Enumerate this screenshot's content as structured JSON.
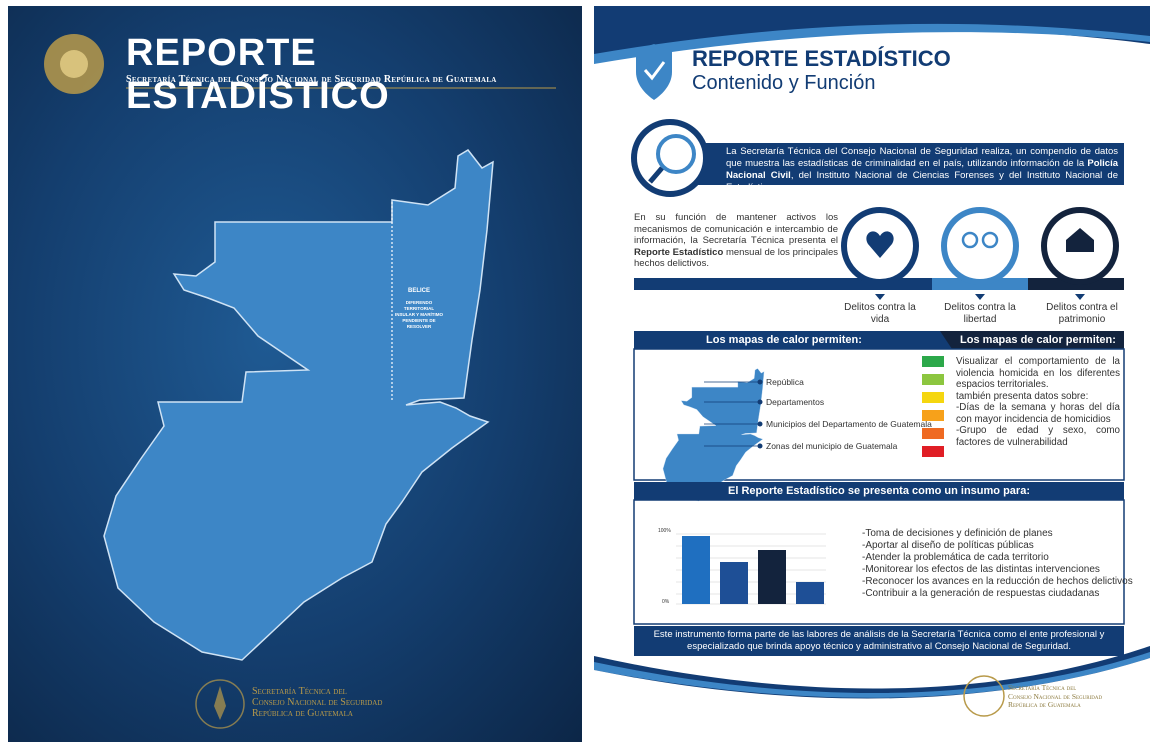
{
  "left_page": {
    "title": "REPORTE ESTADÍSTICO",
    "subtitle": "Secretaría Técnica del Consejo Nacional de Seguridad República de Guatemala",
    "map_label": "BELICE",
    "map_note": "DIFERENDO TERRITORIAL INSULAR Y MARÍTIMO PENDIENTE DE RESOLVER",
    "footer": [
      "Secretaría Técnica del",
      "Consejo Nacional de Seguridad",
      "República de Guatemala"
    ]
  },
  "right_page": {
    "title": "REPORTE ESTADÍSTICO",
    "subtitle": "Contenido y Función",
    "intro": [
      "La Secretaría Técnica del Consejo Nacional de Seguridad realiza, un compendio de datos que muestra las estadísticas de criminalidad en el país, utilizando información de la ",
      "Policía Nacional Civil",
      ", del Instituto Nacional de Ciencias Forenses y del Instituto Nacional de Estadística."
    ],
    "function": [
      "En su función de mantener activos los mecanismos de comunicación e intercambio de información, la Secretaría Técnica presenta el ",
      "Reporte Estadístico",
      " mensual de los principales hechos delictivos."
    ],
    "categories": [
      "Delitos contra la vida",
      "Delitos contra la libertad",
      "Delitos contra el patrimonio"
    ],
    "heat_header": [
      "Los mapas de calor permiten:",
      "Los mapas de calor permiten:"
    ],
    "map_levels": [
      "República",
      "Departamentos",
      "Municipios del Departamento de Guatemala",
      "Zonas del municipio de Guatemala"
    ],
    "heat_text": [
      "Visualizar el comportamiento de la violencia homicida en los diferentes espacios territoriales.",
      "también presenta datos sobre:",
      "-Días de la semana y horas del día con mayor incidencia de homicidios",
      "-Grupo de edad y sexo, como factores de vulnerabilidad"
    ],
    "uses_header": "El Reporte Estadístico se presenta como un insumo para:",
    "chart_labels": [
      "100%",
      "0%"
    ],
    "uses": [
      "-Toma de decisiones y definición de planes",
      "-Aportar al diseño de políticas públicas",
      "-Atender la problemática de cada territorio",
      "-Monitorear los efectos de las distintas intervenciones",
      "-Reconocer los avances en la reducción de hechos delictivos",
      "-Contribuir a la generación de respuestas ciudadanas"
    ],
    "closing": "Este instrumento forma parte de las labores de análisis de la Secretaría Técnica como el ente profesional y especializado que brinda apoyo técnico y administrativo al Consejo Nacional de Seguridad.",
    "footer": [
      "Secretaría Técnica del",
      "Consejo Nacional de Seguridad",
      "República de Guatemala"
    ]
  }
}
